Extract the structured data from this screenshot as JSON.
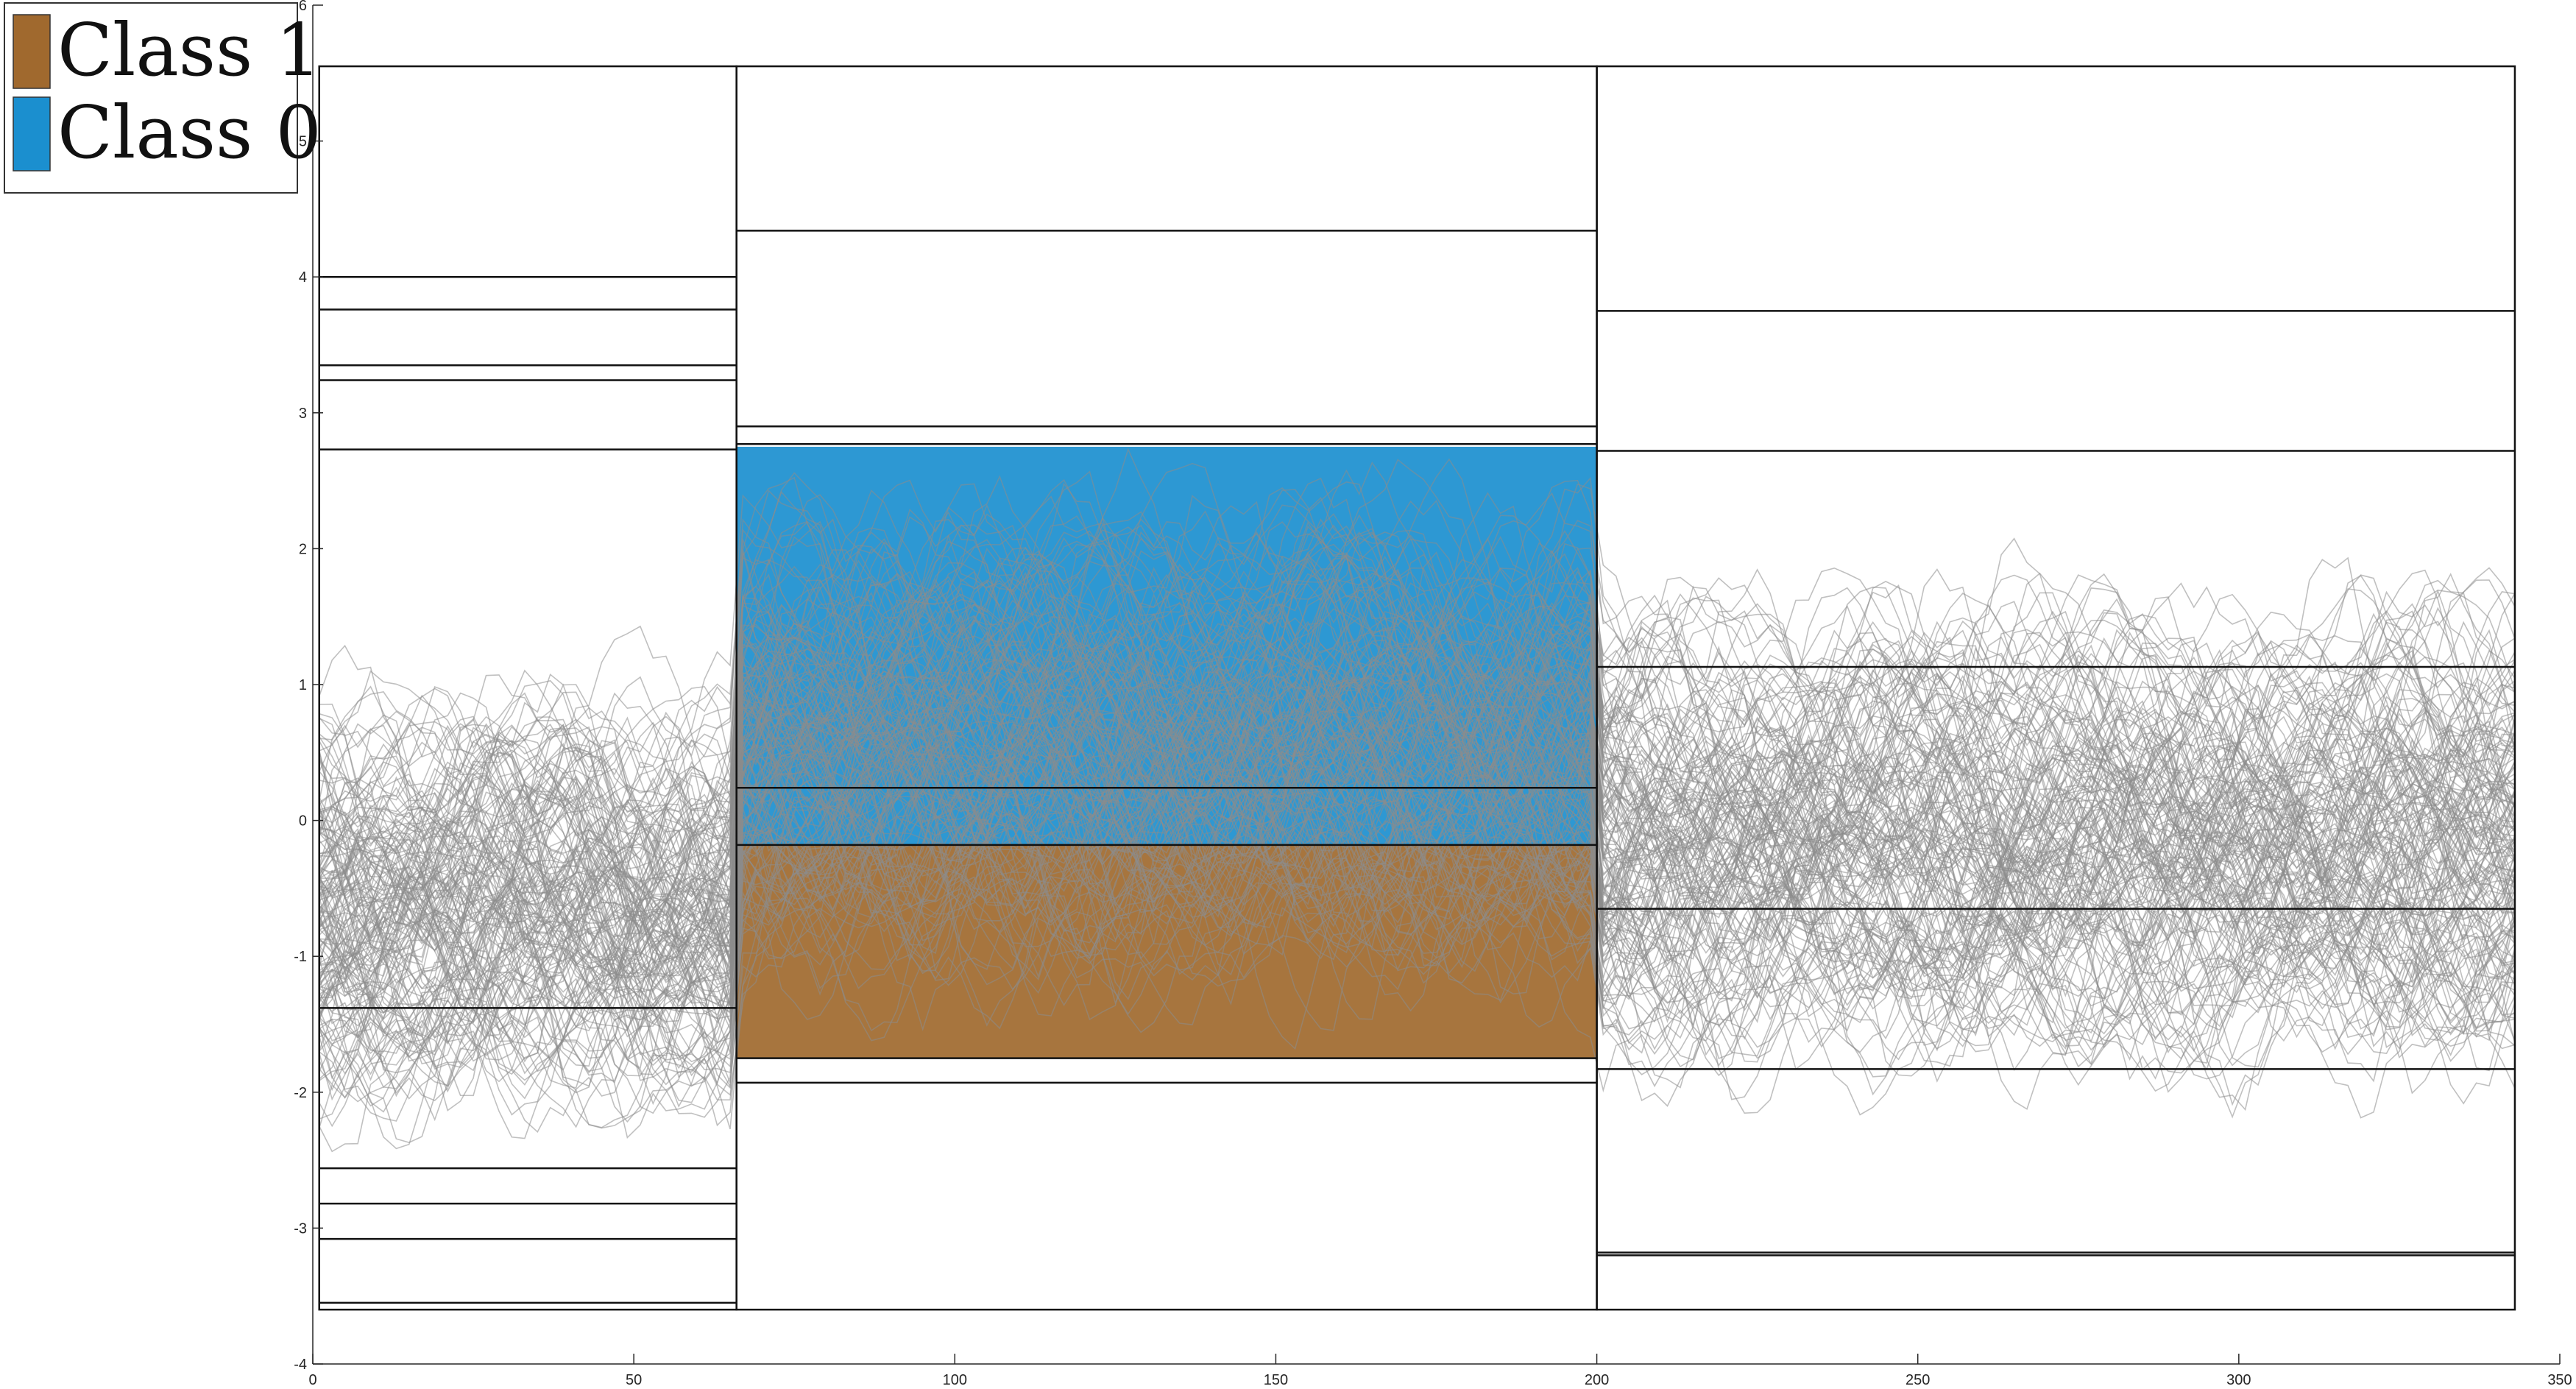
{
  "chart_data": {
    "type": "line",
    "xlim": [
      0,
      350
    ],
    "ylim": [
      -4,
      6
    ],
    "x_ticks": [
      0,
      50,
      100,
      150,
      200,
      250,
      300,
      350
    ],
    "y_ticks": [
      -4,
      -3,
      -2,
      -1,
      0,
      1,
      2,
      3,
      4,
      5,
      6
    ],
    "x_tick_labels": [
      "0",
      "50",
      "100",
      "150",
      "200",
      "250",
      "300",
      "350"
    ],
    "y_tick_labels": [
      "-4",
      "-3",
      "-2",
      "-1",
      "0",
      "1",
      "2",
      "3",
      "4",
      "5",
      "6"
    ],
    "legend_position": "top-left",
    "legend": [
      {
        "label": "Class 1",
        "color": "#a0692e"
      },
      {
        "label": "Class 0",
        "color": "#1b8fcf"
      }
    ],
    "boxes_outline": [
      {
        "x0": 1,
        "x1": 66,
        "y0": -3.6,
        "y1": 5.55
      },
      {
        "x0": 66,
        "x1": 200,
        "y0": -3.6,
        "y1": 5.55
      },
      {
        "x0": 200,
        "x1": 343,
        "y0": -3.6,
        "y1": 5.55
      }
    ],
    "shaded_regions": [
      {
        "class": "Class 0",
        "x0": 66,
        "x1": 200,
        "y0": -0.18,
        "y1": 2.75,
        "color": "#1b8fcf"
      },
      {
        "class": "Class 1",
        "x0": 66,
        "x1": 200,
        "y0": -1.75,
        "y1": -0.18,
        "color": "#a0692e"
      }
    ],
    "threshold_lines": [
      {
        "x0": 1,
        "x1": 66,
        "ys": [
          4.0,
          3.76,
          3.35,
          3.24,
          2.73,
          -1.38,
          -2.56,
          -2.82,
          -3.08,
          -3.55
        ]
      },
      {
        "x0": 66,
        "x1": 200,
        "ys": [
          4.34,
          2.9,
          2.77,
          0.24,
          -0.18,
          -1.75,
          -1.93
        ]
      },
      {
        "x0": 200,
        "x1": 343,
        "ys": [
          3.75,
          2.72,
          1.13,
          -0.65,
          -1.83,
          -3.18,
          -3.2
        ]
      }
    ],
    "series_summary": {
      "x_range": [
        1,
        343
      ],
      "count": 170,
      "line_color": "#8c8c8c",
      "segments": [
        {
          "x0": 1,
          "x1": 66,
          "center": -0.6,
          "spread": 1.05
        },
        {
          "x0": 66,
          "x1": 200,
          "center": 0.55,
          "spread": 1.45
        },
        {
          "x0": 200,
          "x1": 343,
          "center": -0.1,
          "spread": 1.35
        }
      ]
    }
  }
}
